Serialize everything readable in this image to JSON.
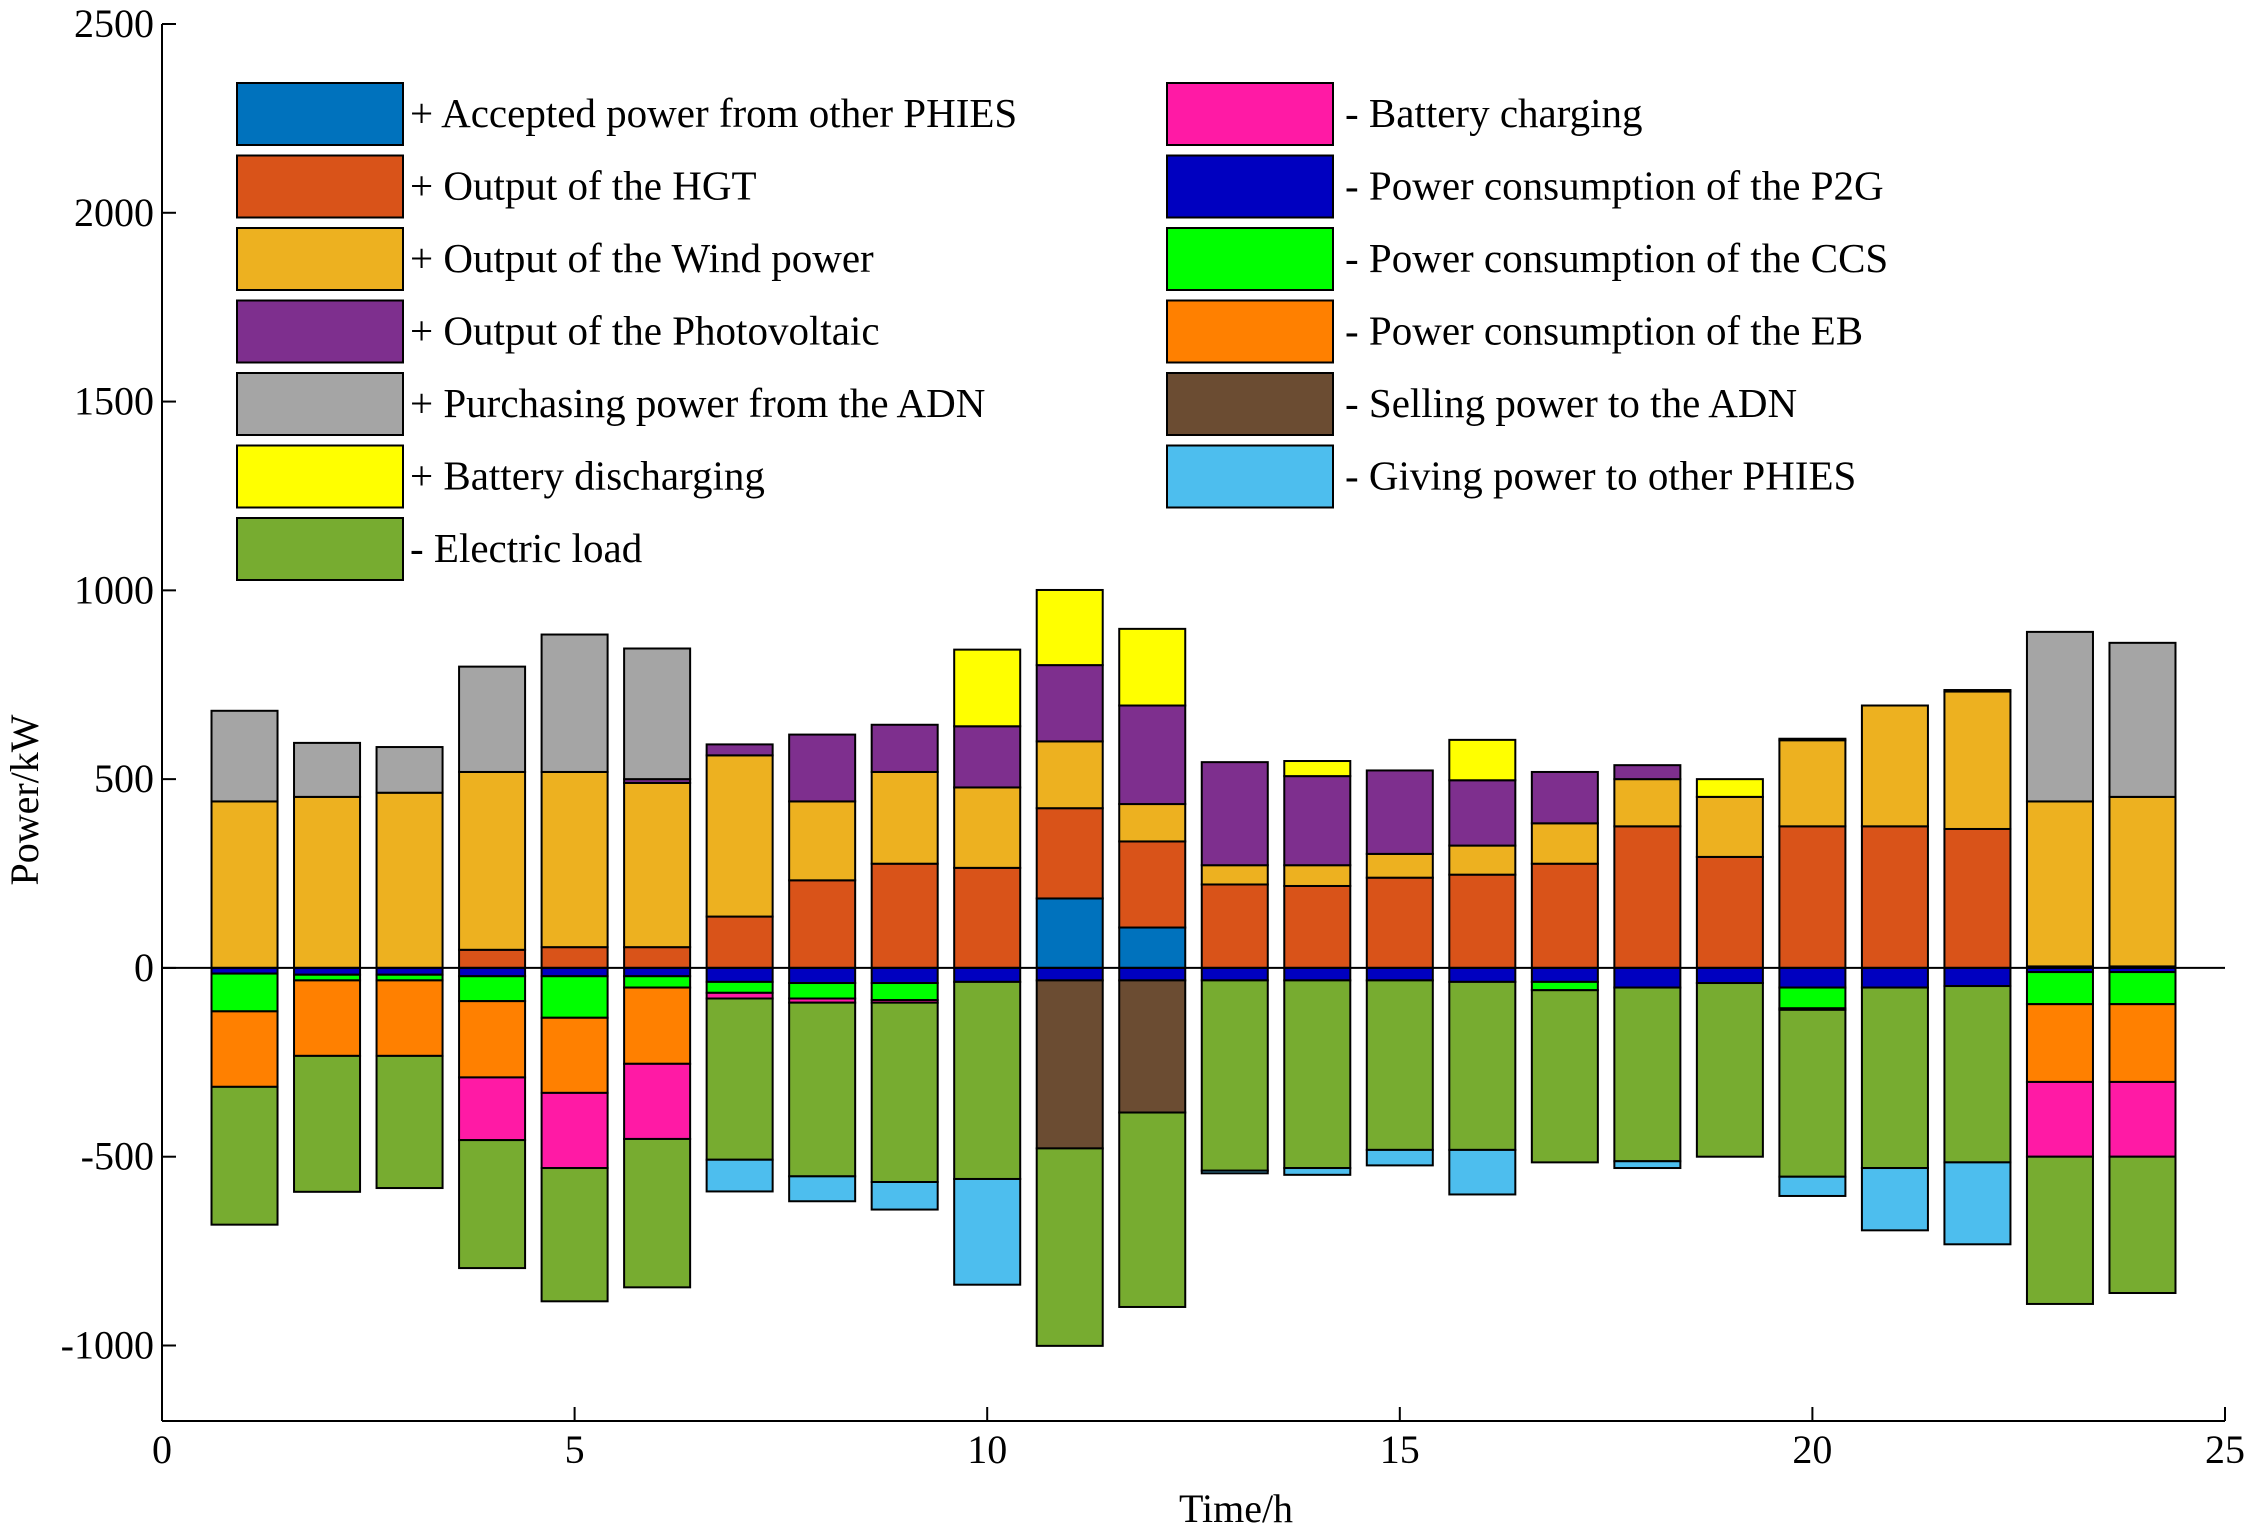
{
  "chart_data": {
    "type": "bar",
    "stacked": true,
    "xlabel": "Time/h",
    "ylabel": "Power/kW",
    "xlim": [
      0,
      25
    ],
    "ylim": [
      -1200,
      2500
    ],
    "xticks": [
      0,
      5,
      10,
      15,
      20,
      25
    ],
    "yticks": [
      -1000,
      -500,
      0,
      500,
      1000,
      1500,
      2000,
      2500
    ],
    "grid": false,
    "legend_placement": "top, two columns inside plot",
    "x": [
      1,
      2,
      3,
      4,
      5,
      6,
      7,
      8,
      9,
      10,
      11,
      12,
      13,
      14,
      15,
      16,
      17,
      18,
      19,
      20,
      21,
      22,
      23,
      24
    ],
    "series": [
      {
        "name": "+ Accepted power from other PHIES",
        "color": "#0072BD",
        "values": [
          0,
          0,
          0,
          0,
          0,
          0,
          0,
          0,
          0,
          0,
          184,
          107,
          0,
          0,
          0,
          0,
          0,
          0,
          0,
          0,
          0,
          0,
          0,
          0
        ]
      },
      {
        "name": "+ Output of the HGT",
        "color": "#D95319",
        "values": [
          0,
          0,
          0,
          48,
          55,
          55,
          136,
          232,
          276,
          265,
          239,
          228,
          221,
          217,
          239,
          247,
          276,
          375,
          294,
          375,
          375,
          368,
          4,
          4
        ]
      },
      {
        "name": "+ Output of the Wind power",
        "color": "#EDB120",
        "values": [
          441,
          453,
          464,
          471,
          464,
          435,
          427,
          209,
          243,
          213,
          177,
          99,
          51,
          55,
          63,
          77,
          107,
          125,
          159,
          228,
          320,
          364,
          437,
          449
        ]
      },
      {
        "name": "+ Output of the Photovoltaic",
        "color": "#7E2F8E",
        "values": [
          0,
          0,
          0,
          0,
          0,
          10,
          29,
          177,
          125,
          162,
          202,
          261,
          273,
          236,
          221,
          173,
          136,
          37,
          0,
          4,
          0,
          4,
          0,
          0
        ]
      },
      {
        "name": "+ Purchasing power from the ADN",
        "color": "#A5A5A5",
        "values": [
          240,
          143,
          121,
          279,
          364,
          346,
          0,
          0,
          0,
          0,
          0,
          0,
          0,
          0,
          0,
          0,
          0,
          0,
          0,
          0,
          0,
          0,
          449,
          408
        ]
      },
      {
        "name": "+ Battery discharging",
        "color": "#FFFF00",
        "values": [
          0,
          0,
          0,
          0,
          0,
          0,
          0,
          0,
          0,
          203,
          199,
          203,
          0,
          40,
          0,
          107,
          0,
          0,
          47,
          0,
          0,
          0,
          0,
          0
        ]
      },
      {
        "name": "- Electric load",
        "color": "#77AC30",
        "values": [
          -365,
          -360,
          -350,
          -339,
          -353,
          -393,
          -427,
          -460,
          -475,
          -522,
          -523,
          -515,
          -504,
          -497,
          -449,
          -445,
          -456,
          -460,
          -460,
          -442,
          -478,
          -467,
          -390,
          -361
        ]
      },
      {
        "name": "- Battery charging",
        "color": "#FF1AA5",
        "values": [
          0,
          0,
          0,
          -166,
          -199,
          -199,
          -15,
          -11,
          -7,
          0,
          0,
          0,
          0,
          0,
          0,
          0,
          0,
          0,
          0,
          -4,
          0,
          0,
          -198,
          -198
        ]
      },
      {
        "name": "- Power consumption of the P2G",
        "color": "#0000C0",
        "values": [
          -15,
          -18,
          -18,
          -22,
          -22,
          -22,
          -37,
          -40,
          -40,
          -37,
          -33,
          -33,
          -33,
          -33,
          -33,
          -37,
          -37,
          -52,
          -40,
          -52,
          -52,
          -48,
          -11,
          -11
        ]
      },
      {
        "name": "- Power consumption of the CCS",
        "color": "#00FF00",
        "values": [
          -100,
          -15,
          -15,
          -66,
          -110,
          -30,
          -29,
          -41,
          -45,
          0,
          0,
          0,
          0,
          0,
          0,
          0,
          -22,
          0,
          0,
          -55,
          0,
          0,
          -85,
          -85
        ]
      },
      {
        "name": "- Power consumption of the EB",
        "color": "#FF8000",
        "values": [
          -200,
          -200,
          -200,
          -202,
          -199,
          -202,
          0,
          0,
          0,
          0,
          0,
          0,
          0,
          0,
          0,
          0,
          0,
          0,
          0,
          0,
          0,
          0,
          -206,
          -206
        ]
      },
      {
        "name": "- Selling power to the ADN",
        "color": "#6B4C32",
        "values": [
          0,
          0,
          0,
          0,
          0,
          0,
          0,
          0,
          0,
          0,
          -445,
          -350,
          0,
          0,
          0,
          0,
          0,
          0,
          0,
          0,
          0,
          0,
          0,
          0
        ]
      },
      {
        "name": "- Giving power to other PHIES",
        "color": "#4DBEEE",
        "values": [
          0,
          0,
          0,
          0,
          0,
          0,
          -84,
          -66,
          -73,
          -280,
          0,
          0,
          -7,
          -18,
          -41,
          -118,
          0,
          -18,
          0,
          -51,
          -165,
          -217,
          0,
          0
        ]
      }
    ],
    "positive_stack_order": [
      0,
      1,
      2,
      3,
      4,
      5
    ],
    "negative_stack_order": [
      8,
      9,
      10,
      7,
      11,
      6,
      12
    ],
    "legend_left": [
      0,
      1,
      2,
      3,
      4,
      5,
      6
    ],
    "legend_right": [
      7,
      8,
      9,
      10,
      11,
      12
    ]
  }
}
